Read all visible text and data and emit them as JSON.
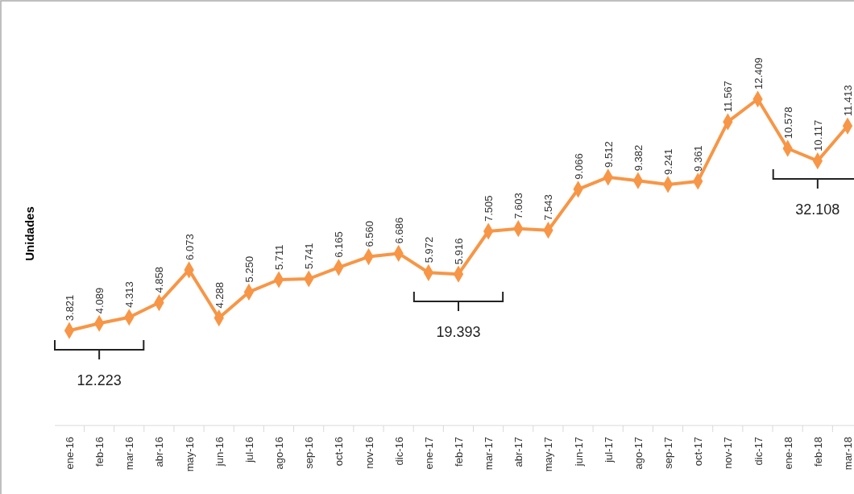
{
  "chart_data": {
    "type": "line",
    "ylabel": "Unidades",
    "categories": [
      "ene-16",
      "feb-16",
      "mar-16",
      "abr-16",
      "may-16",
      "jun-16",
      "jul-16",
      "ago-16",
      "sep-16",
      "oct-16",
      "nov-16",
      "dic-16",
      "ene-17",
      "feb-17",
      "mar-17",
      "abr-17",
      "may-17",
      "jun-17",
      "jul-17",
      "ago-17",
      "sep-17",
      "oct-17",
      "nov-17",
      "dic-17",
      "ene-18",
      "feb-18",
      "mar-18"
    ],
    "series": [
      {
        "color": "#f79646",
        "values": [
          3821,
          4089,
          4313,
          4858,
          6073,
          4288,
          5250,
          5711,
          5741,
          6165,
          6560,
          6686,
          5972,
          5916,
          7505,
          7603,
          7543,
          9066,
          9512,
          9382,
          9241,
          9361,
          11567,
          12409,
          10578,
          10117,
          11413
        ],
        "value_labels": [
          "3.821",
          "4.089",
          "4.313",
          "4.858",
          "6.073",
          "4.288",
          "5.250",
          "5.711",
          "5.741",
          "6.165",
          "6.560",
          "6.686",
          "5.972",
          "5.916",
          "7.505",
          "7.603",
          "7.543",
          "9.066",
          "9.512",
          "9.382",
          "9.241",
          "9.361",
          "11.567",
          "12.409",
          "10.578",
          "10.117",
          "11.413"
        ]
      }
    ],
    "annotations": [
      "12.223",
      "19.393",
      "32.108"
    ],
    "marker": "diamond"
  }
}
